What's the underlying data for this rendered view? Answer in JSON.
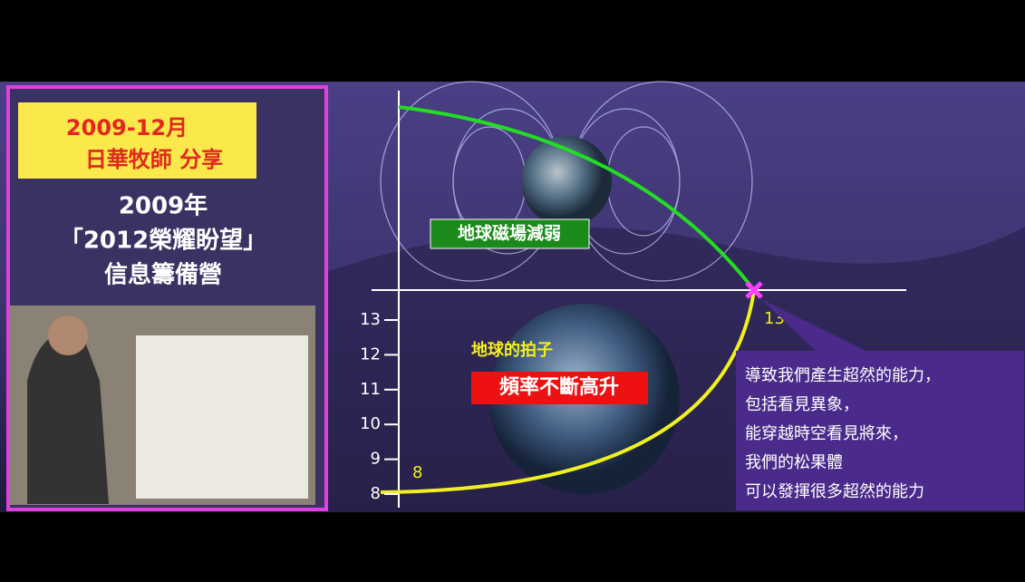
{
  "left_panel": {
    "badge": [
      "2009-12月",
      "日華牧師 分享"
    ],
    "title_lines": [
      "2009年",
      "「2012榮耀盼望」",
      "信息籌備營"
    ]
  },
  "diagram": {
    "yticks": [
      8,
      9,
      10,
      11,
      12,
      13
    ],
    "upper_label": "地球磁場減弱",
    "lower_caption": "地球的拍子",
    "lower_label": "頻率不斷高升",
    "start_label": "8",
    "end_label": "13",
    "callout": [
      "導致我們產生超然的能力，",
      "包括看見異象，",
      "能穿越時空看見將來，",
      "我們的松果體",
      "可以發揮很多超然的能力"
    ]
  }
}
